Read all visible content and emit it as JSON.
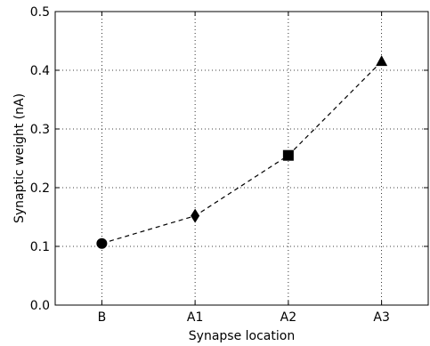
{
  "chart_data": {
    "type": "line",
    "categories": [
      "B",
      "A1",
      "A2",
      "A3"
    ],
    "series": [
      {
        "values": [
          0.105,
          0.152,
          0.255,
          0.415
        ],
        "markers": [
          "circle",
          "diamond",
          "square",
          "triangle"
        ],
        "line_style": "dashed",
        "color": "#000000"
      }
    ],
    "title": "",
    "xlabel": "Synapse location",
    "ylabel": "Synaptic weight (nA)",
    "ylim": [
      0.0,
      0.5
    ],
    "yticks": [
      "0.0",
      "0.1",
      "0.2",
      "0.3",
      "0.4",
      "0.5"
    ],
    "grid": true,
    "grid_style": "dotted"
  }
}
